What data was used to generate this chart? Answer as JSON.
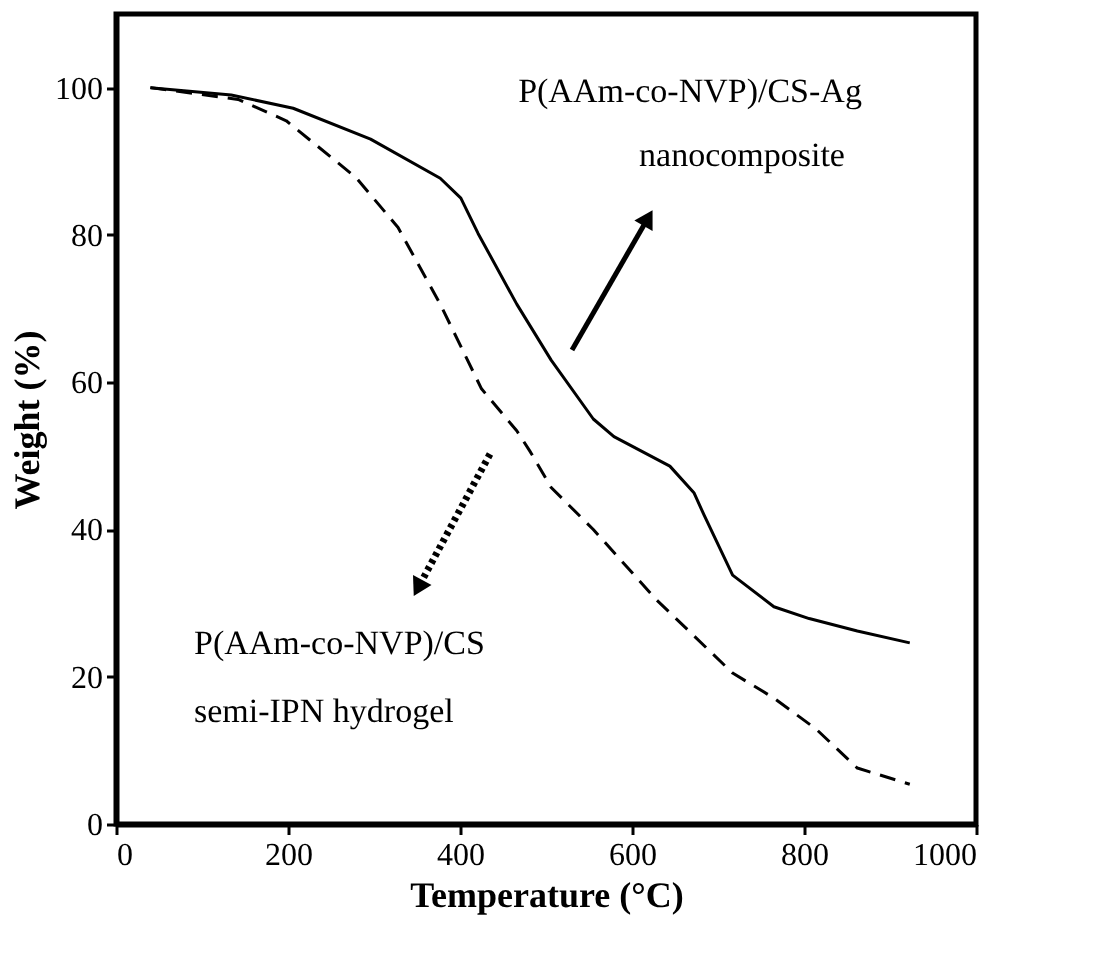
{
  "chart_data": {
    "type": "line",
    "xlabel": "Temperature (°C)",
    "ylabel": "Weight (%)",
    "xlim": [
      0,
      1000
    ],
    "ylim": [
      0,
      110
    ],
    "xticks": [
      0,
      200,
      400,
      600,
      800,
      1000
    ],
    "yticks": [
      0,
      20,
      40,
      60,
      80,
      100
    ],
    "grid": false,
    "marker": "none",
    "series": [
      {
        "color": "#000000",
        "line_style": "solid",
        "x": [
          40,
          134,
          206,
          296,
          377,
          401,
          421,
          466,
          506,
          555,
          579,
          644,
          672,
          684,
          717,
          765,
          806,
          862,
          923
        ],
        "values": [
          100,
          99,
          97.2,
          93,
          87.7,
          85,
          80.2,
          70.6,
          63,
          55,
          52.6,
          48.6,
          45,
          41.9,
          33.8,
          29.5,
          27.9,
          26.2,
          24.6
        ]
      },
      {
        "color": "#000000",
        "line_style": "dashed",
        "x": [
          40,
          142,
          198,
          279,
          328,
          377,
          425,
          466,
          482,
          506,
          555,
          628,
          717,
          765,
          814,
          862,
          923
        ],
        "values": [
          100,
          98.4,
          95.5,
          87.8,
          81,
          70.6,
          59.1,
          53.4,
          50.5,
          45.7,
          40,
          30.5,
          20.5,
          17.1,
          12.9,
          7.6,
          5.4
        ]
      }
    ],
    "annotations": [
      "P(AAm-co-NVP)/CS-Ag",
      "nanocomposite",
      "P(AAm-co-NVP)/CS",
      "semi-IPN hydrogel"
    ]
  }
}
